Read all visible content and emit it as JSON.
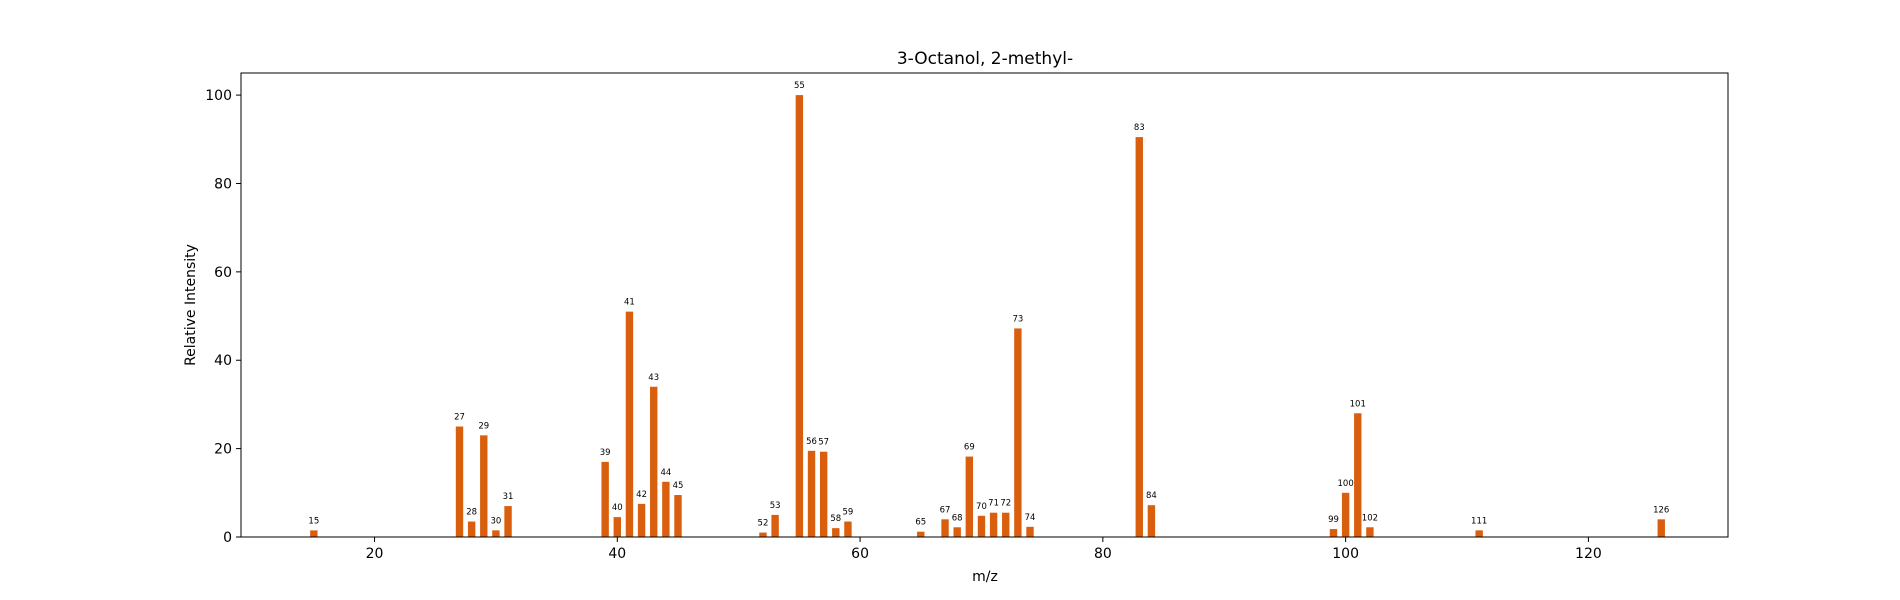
{
  "chart_data": {
    "type": "bar",
    "title": "3-Octanol, 2-methyl-",
    "xlabel": "m/z",
    "ylabel": "Relative Intensity",
    "xlim": [
      9,
      131.5
    ],
    "ylim": [
      0,
      105
    ],
    "xticks": [
      20,
      40,
      60,
      80,
      100,
      120
    ],
    "yticks": [
      0,
      20,
      40,
      60,
      80,
      100
    ],
    "bar_color": "#d95f0e",
    "grid": false,
    "bars": [
      {
        "mz": 15,
        "intensity": 1.5
      },
      {
        "mz": 27,
        "intensity": 25
      },
      {
        "mz": 28,
        "intensity": 3.5
      },
      {
        "mz": 29,
        "intensity": 23
      },
      {
        "mz": 30,
        "intensity": 1.5
      },
      {
        "mz": 31,
        "intensity": 7
      },
      {
        "mz": 39,
        "intensity": 17
      },
      {
        "mz": 40,
        "intensity": 4.5
      },
      {
        "mz": 41,
        "intensity": 51
      },
      {
        "mz": 42,
        "intensity": 7.5
      },
      {
        "mz": 43,
        "intensity": 34
      },
      {
        "mz": 44,
        "intensity": 12.5
      },
      {
        "mz": 45,
        "intensity": 9.5
      },
      {
        "mz": 52,
        "intensity": 1
      },
      {
        "mz": 53,
        "intensity": 5
      },
      {
        "mz": 55,
        "intensity": 100
      },
      {
        "mz": 56,
        "intensity": 19.5
      },
      {
        "mz": 57,
        "intensity": 19.3
      },
      {
        "mz": 58,
        "intensity": 2
      },
      {
        "mz": 59,
        "intensity": 3.5
      },
      {
        "mz": 65,
        "intensity": 1.2
      },
      {
        "mz": 67,
        "intensity": 4
      },
      {
        "mz": 68,
        "intensity": 2.2
      },
      {
        "mz": 69,
        "intensity": 18.2
      },
      {
        "mz": 70,
        "intensity": 4.8
      },
      {
        "mz": 71,
        "intensity": 5.5
      },
      {
        "mz": 72,
        "intensity": 5.5
      },
      {
        "mz": 73,
        "intensity": 47.2
      },
      {
        "mz": 74,
        "intensity": 2.3
      },
      {
        "mz": 83,
        "intensity": 90.5
      },
      {
        "mz": 84,
        "intensity": 7.2
      },
      {
        "mz": 99,
        "intensity": 1.8
      },
      {
        "mz": 100,
        "intensity": 10
      },
      {
        "mz": 101,
        "intensity": 28
      },
      {
        "mz": 102,
        "intensity": 2.2
      },
      {
        "mz": 111,
        "intensity": 1.5
      },
      {
        "mz": 126,
        "intensity": 4
      }
    ]
  }
}
